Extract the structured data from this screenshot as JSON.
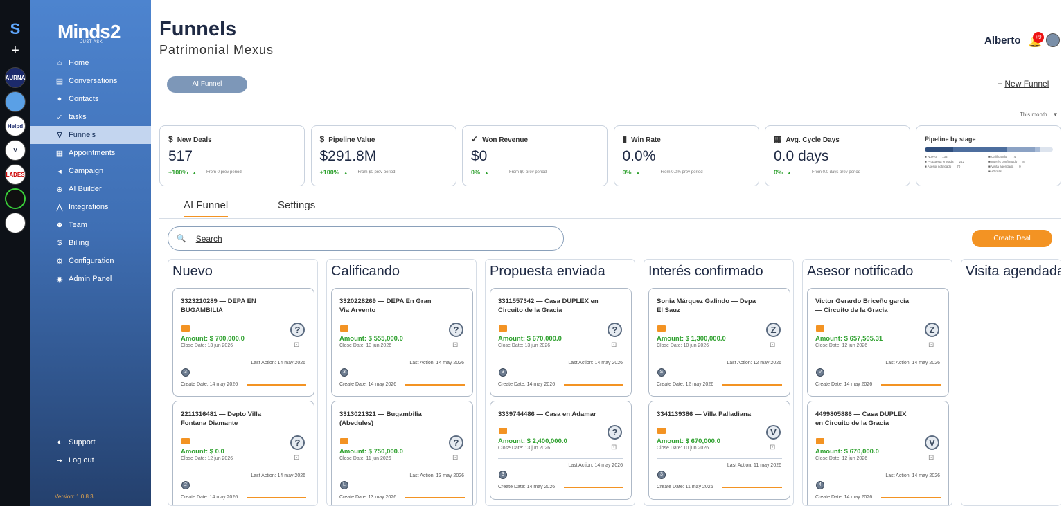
{
  "rail": {
    "logo": "S",
    "add": "+",
    "workspaces": [
      {
        "label": "AURNA",
        "color": "#1c2a6b",
        "text": "#fff"
      },
      {
        "label": "",
        "color": "#5aa0e6",
        "text": "#fff"
      },
      {
        "label": "Helpd",
        "color": "#ffffff",
        "text": "#1c2a6b"
      },
      {
        "label": "V",
        "color": "#ffffff",
        "text": "#1f2a44"
      },
      {
        "label": "LADES",
        "color": "#ffffff",
        "text": "#c00"
      },
      {
        "label": "",
        "color": "#101010",
        "text": "#fff"
      },
      {
        "label": "",
        "color": "#ffffff",
        "text": "#333"
      }
    ]
  },
  "sidebar": {
    "brand": "Minds2",
    "tagline": "JUST ASK",
    "items": [
      {
        "label": "Home",
        "icon": "⌂",
        "name": "home"
      },
      {
        "label": "Conversations",
        "icon": "▤",
        "name": "conversations"
      },
      {
        "label": "Contacts",
        "icon": "●",
        "name": "contacts"
      },
      {
        "label": "tasks",
        "icon": "✓",
        "name": "tasks"
      },
      {
        "label": "Funnels",
        "icon": "∇",
        "name": "funnels",
        "active": true
      },
      {
        "label": "Appointments",
        "icon": "▦",
        "name": "appointments"
      },
      {
        "label": "Campaign",
        "icon": "◂",
        "name": "campaign"
      },
      {
        "label": "AI Builder",
        "icon": "⊕",
        "name": "ai-builder"
      },
      {
        "label": "Integrations",
        "icon": "⋀",
        "name": "integrations"
      },
      {
        "label": "Team",
        "icon": "☻",
        "name": "team"
      },
      {
        "label": "Billing",
        "icon": "$",
        "name": "billing"
      },
      {
        "label": "Configuration",
        "icon": "⚙",
        "name": "configuration"
      },
      {
        "label": "Admin Panel",
        "icon": "◉",
        "name": "admin-panel"
      }
    ],
    "support": "Support",
    "logout": "Log out",
    "version": "Version: 1.0.8.3"
  },
  "header": {
    "title": "Funnels",
    "subtitle": "Patrimonial Mexus",
    "user": "Alberto",
    "notifications": "+9"
  },
  "toolbar": {
    "funnel_pill": "AI Funnel",
    "new_funnel_plus": "+",
    "new_funnel": "New Funnel",
    "period": "This month"
  },
  "kpis": [
    {
      "icon": "$",
      "label": "New Deals",
      "value": "517",
      "change": "+100%",
      "arrow": "▲",
      "prev": "From 0 prev period"
    },
    {
      "icon": "$",
      "label": "Pipeline Value",
      "value": "$291.8M",
      "change": "+100%",
      "arrow": "▲",
      "prev": "From $0 prev period"
    },
    {
      "icon": "✓",
      "label": "Won Revenue",
      "value": "$0",
      "change": "0%",
      "arrow": "▲",
      "prev": "From $0 prev period"
    },
    {
      "icon": "▮",
      "label": "Win Rate",
      "value": "0.0%",
      "change": "0%",
      "arrow": "▲",
      "prev": "From 0.0% prev period"
    },
    {
      "icon": "▦",
      "label": "Avg. Cycle Days",
      "value": "0.0 days",
      "change": "0%",
      "arrow": "▲",
      "prev": "From 0.0 days prev period"
    }
  ],
  "pipeline": {
    "title": "Pipeline by stage",
    "segments": [
      {
        "share": 0.22,
        "color": "#2f4e7d"
      },
      {
        "share": 0.42,
        "color": "#4d6e9e"
      },
      {
        "share": 0.22,
        "color": "#8ba2c4"
      },
      {
        "share": 0.04,
        "color": "#a7bad6"
      }
    ],
    "legend_left": [
      {
        "label": "Nuevo",
        "value": "133"
      },
      {
        "label": "Propuesta enviada",
        "value": "242"
      },
      {
        "label": "Asesor notificado",
        "value": "70"
      }
    ],
    "legend_right": [
      {
        "label": "Calificando",
        "value": "74"
      },
      {
        "label": "Interés confirmado",
        "value": "8"
      },
      {
        "label": "Visita agendada",
        "value": "0"
      },
      {
        "label": "+2 más",
        "value": ""
      }
    ]
  },
  "tabs": [
    "AI Funnel",
    "Settings"
  ],
  "search": {
    "placeholder": "Search"
  },
  "create_deal": "Create Deal",
  "columns": [
    {
      "title": "Nuevo",
      "cards": [
        {
          "title": "3323210289 — DEPA EN BUGAMBILIA",
          "amount": "Amount: $ 700,000.0",
          "close": "Close Date: 13 jun 2026",
          "avatar": "?",
          "last": "Last Action: 14 may 2026",
          "owner": "3",
          "create": "Create Date: 14 may 2026"
        },
        {
          "title": "2211316481 — Depto Villa Fontana Diamante",
          "amount": "Amount: $ 0.0",
          "close": "Close Date: 12 jun 2026",
          "avatar": "?",
          "last": "Last Action: 14 may 2026",
          "owner": "2",
          "create": "Create Date: 14 may 2026"
        }
      ]
    },
    {
      "title": "Calificando",
      "cards": [
        {
          "title": "3320228269 — DEPA En Gran Via Arvento",
          "amount": "Amount: $ 555,000.0",
          "close": "Close Date: 13 jun 2026",
          "avatar": "?",
          "last": "Last Action: 14 may 2026",
          "owner": "3",
          "create": "Create Date: 14 may 2026"
        },
        {
          "title": "3313021321 — Bugambilia (Abedules)",
          "amount": "Amount: $ 750,000.0",
          "close": "Close Date: 11 jun 2026",
          "avatar": "?",
          "last": "Last Action: 13 may 2026",
          "owner": "L",
          "create": "Create Date: 13 may 2026"
        }
      ]
    },
    {
      "title": "Propuesta enviada",
      "cards": [
        {
          "title": "3311557342 — Casa DUPLEX en Circuito de la Gracia",
          "amount": "Amount: $ 670,000.0",
          "close": "Close Date: 13 jun 2026",
          "avatar": "?",
          "last": "Last Action: 14 may 2026",
          "owner": "3",
          "create": "Create Date: 14 may 2026"
        },
        {
          "title": "3339744486 — Casa en Adamar",
          "amount": "Amount: $ 2,400,000.0",
          "close": "Close Date: 13 jun 2026",
          "avatar": "?",
          "last": "Last Action: 14 may 2026",
          "owner": "3",
          "create": "Create Date: 14 may 2026",
          "short": true
        }
      ]
    },
    {
      "title": "Interés confirmado",
      "cards": [
        {
          "title": "Sonia Márquez Galindo — Depa El Sauz",
          "amount": "Amount: $ 1,300,000.0",
          "close": "Close Date: 10 jun 2026",
          "avatar": "Z",
          "last": "Last Action: 12 may 2026",
          "owner": "S",
          "create": "Create Date: 12 may 2026"
        },
        {
          "title": "3341139386 — Villa Palladiana",
          "amount": "Amount: $ 670,000.0",
          "close": "Close Date: 10 jun 2026",
          "avatar": "V",
          "last": "Last Action: 11 may 2026",
          "owner": "3",
          "create": "Create Date: 11 may 2026",
          "short": true
        }
      ]
    },
    {
      "title": "Asesor notificado",
      "cards": [
        {
          "title": "Victor Gerardo Briceño garcia — Circuito de la Gracia",
          "amount": "Amount: $ 657,505.31",
          "close": "Close Date: 12 jun 2026",
          "avatar": "Z",
          "last": "Last Action: 14 may 2026",
          "owner": "V",
          "create": "Create Date: 14 may 2026"
        },
        {
          "title": "4499805886 — Casa DUPLEX en Circuito de la Gracia",
          "amount": "Amount: $ 670,000.0",
          "close": "Close Date: 12 jun 2026",
          "avatar": "V",
          "last": "Last Action: 14 may 2026",
          "owner": "4",
          "create": "Create Date: 14 may 2026"
        }
      ]
    },
    {
      "title": "Visita agendada",
      "cards": []
    }
  ]
}
